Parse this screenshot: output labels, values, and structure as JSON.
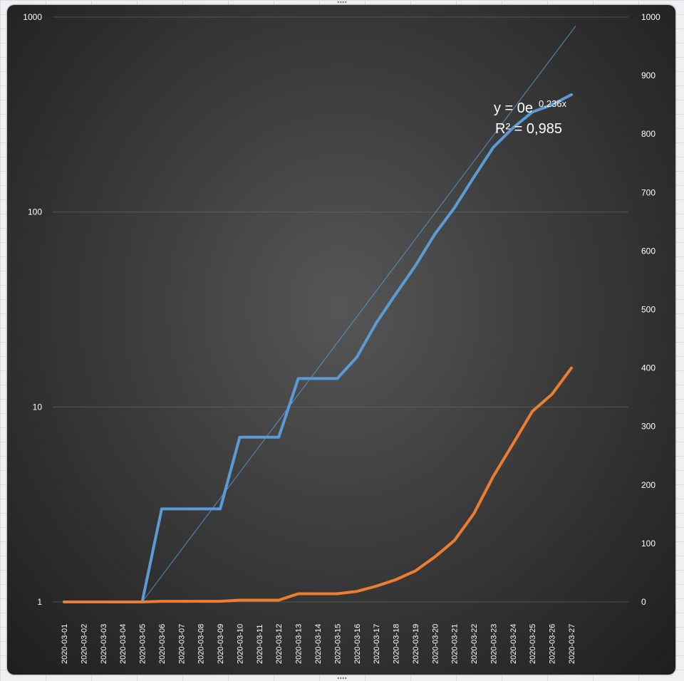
{
  "chart_data": {
    "type": "line",
    "categories": [
      "2020-03-01",
      "2020-03-02",
      "2020-03-03",
      "2020-03-04",
      "2020-03-05",
      "2020-03-06",
      "2020-03-07",
      "2020-03-08",
      "2020-03-09",
      "2020-03-10",
      "2020-03-11",
      "2020-03-12",
      "2020-03-13",
      "2020-03-14",
      "2020-03-15",
      "2020-03-16",
      "2020-03-17",
      "2020-03-18",
      "2020-03-19",
      "2020-03-20",
      "2020-03-21",
      "2020-03-22",
      "2020-03-23",
      "2020-03-24",
      "2020-03-25",
      "2020-03-26",
      "2020-03-27"
    ],
    "y_left": {
      "scale": "log",
      "range": [
        1,
        1000
      ],
      "ticks": [
        "1",
        "10",
        "100",
        "1000"
      ]
    },
    "y_right": {
      "scale": "linear",
      "range": [
        0,
        1000
      ],
      "ticks": [
        "0",
        "100",
        "200",
        "300",
        "400",
        "500",
        "600",
        "700",
        "800",
        "900",
        "1000"
      ]
    },
    "series": [
      {
        "axis": "left",
        "color": "#5b9bd5",
        "values": [
          1,
          1,
          1,
          1,
          1,
          3,
          3,
          3,
          3,
          7,
          7,
          7,
          14,
          14,
          14,
          18,
          27,
          38,
          53,
          77,
          105,
          151,
          215,
          270,
          326,
          355,
          400
        ]
      },
      {
        "axis": "right",
        "color": "#ed7d31",
        "values": [
          0,
          0,
          0,
          0,
          0,
          1,
          1,
          1,
          1,
          3,
          3,
          3,
          14,
          14,
          14,
          18,
          27,
          38,
          53,
          77,
          105,
          151,
          215,
          270,
          326,
          355,
          400
        ]
      }
    ],
    "trendline": {
      "type": "exponential",
      "series": 0,
      "color": "#5b9bd5",
      "equation_main": "y = 0e",
      "equation_exponent": "0,236x",
      "r2": "R² = 0,985"
    },
    "grid": true,
    "background": "#3c3c3c"
  }
}
